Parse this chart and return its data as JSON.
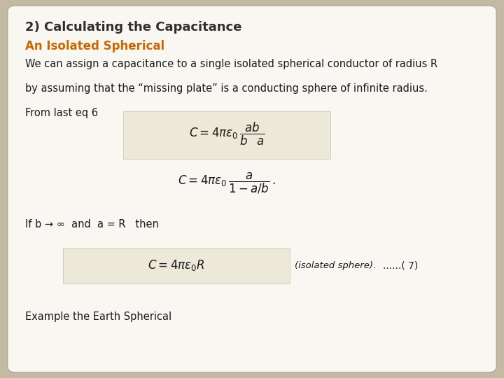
{
  "title": "2) Calculating the Capacitance",
  "subtitle": "An Isolated Spherical",
  "title_color": "#2F2F2F",
  "subtitle_color": "#CC6600",
  "body_line1": "We can assign a capacitance to a single isolated spherical conductor of radius R",
  "body_line2": "by assuming that the “missing plate” is a conducting sphere of infinite radius.",
  "body_line3": "From last eq 6",
  "cond_text": "If b → ∞  and  a = R   then",
  "eq3_note": "(isolated sphere).",
  "eq3_ref": "......( 7)",
  "footer_text": "Example the Earth Spherical",
  "bg_color": "#C4BAA4",
  "box_color": "#F8F7F2",
  "eq_box_color": "#EDE9D8",
  "border_color": "#B0A898",
  "text_color": "#1A1A1A",
  "body_fontsize": 10.5,
  "title_fontsize": 13,
  "subtitle_fontsize": 12,
  "eq_fontsize": 12
}
